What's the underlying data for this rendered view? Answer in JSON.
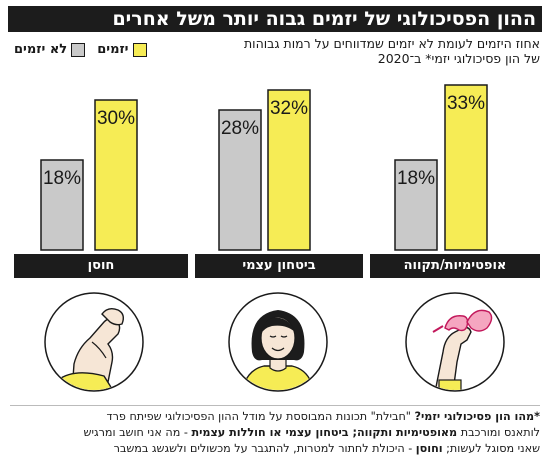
{
  "header": {
    "title": "ההון הפסיכולוגי של יזמים גבוה יותר משל אחרים",
    "subtitle": "אחוז היזמים לעומת לא יזמים שמדווחים על רמות גבוהות של הון פסיכולוגי יזמי* ב־2020"
  },
  "legend": {
    "entrepreneurs": "יזמים",
    "non_entrepreneurs": "לא יזמים"
  },
  "colors": {
    "entrepreneurs": "#f6ec55",
    "non_entrepreneurs": "#c9c9c9",
    "dark": "#1c1c1c"
  },
  "chart_data": {
    "type": "bar",
    "categories": [
      "אופטימיות/תקווה",
      "ביטחון עצמי",
      "חוסן"
    ],
    "series": [
      {
        "name": "לא יזמים",
        "values": [
          18,
          28,
          18
        ]
      },
      {
        "name": "יזמים",
        "values": [
          33,
          32,
          30
        ]
      }
    ],
    "value_suffix": "%",
    "ylim": [
      0,
      33
    ]
  },
  "illustrations": [
    {
      "category": "אופטימיות/תקווה",
      "icon": "glasses-hand-icon"
    },
    {
      "category": "ביטחון עצמי",
      "icon": "confident-woman-icon"
    },
    {
      "category": "חוסן",
      "icon": "flexed-arm-icon"
    }
  ],
  "footnote": {
    "line1_bold": "*מהו הון פסיכולוגי יזמי?",
    "line1": " \"חבילת\" תכונות המבוססת על מודל ההון הפסיכולוגי שפיתח פרד",
    "line2a": "לותאנס ומורכבת ",
    "line2_bold1": "מאופטימיות ותקווה; ביטחון עצמי או חוללות עצמית",
    "line2b": " - מה אני חושב ומרגיש",
    "line3a": "שאני מסוגל לעשות; ",
    "line3_bold": "וחוסן",
    "line3b": " - היכולת לחתור למטרות, להתגבר על מכשולים ולשגשג במשבר"
  }
}
